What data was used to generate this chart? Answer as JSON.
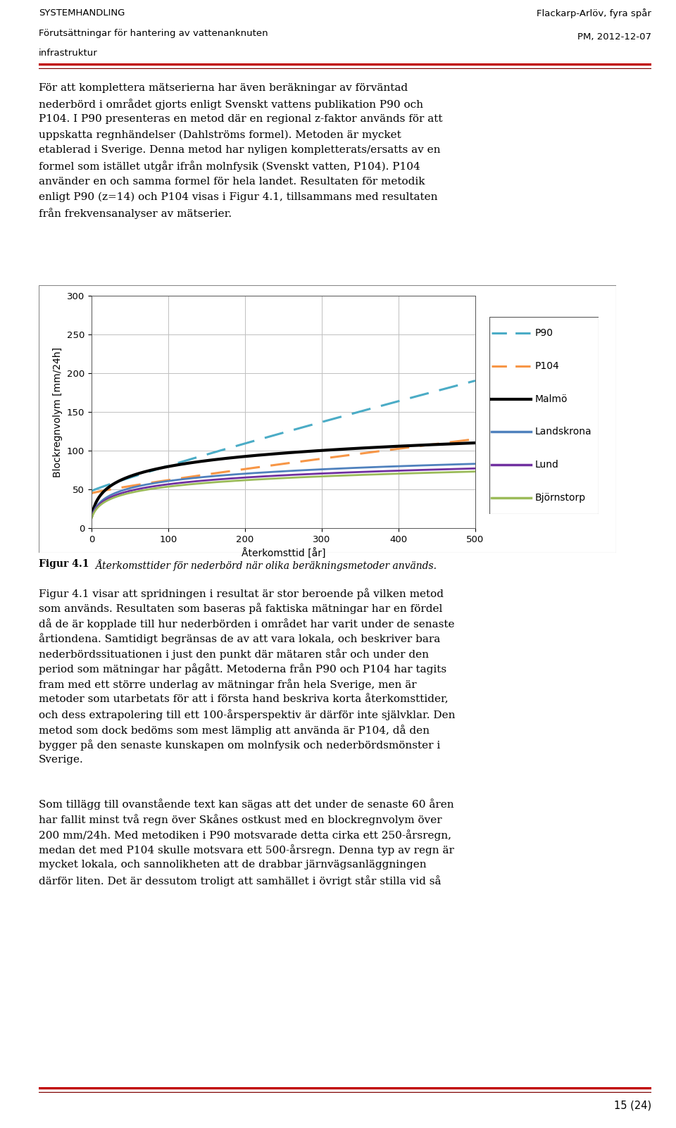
{
  "header_left_line1": "SYSTEMHANDLING",
  "header_left_line2": "Förutsättningar för hantering av vattenanknuten",
  "header_left_line3": "infrastruktur",
  "header_right_line1": "Flackarp-Arlöv, fyra spår",
  "header_right_line2": "PM, 2012-12-07",
  "header_line_color": "#c00000",
  "header_line2_color": "#7f0000",
  "xlabel": "Återkomsttid [år]",
  "ylabel": "Blockregnvolym [mm/24h]",
  "xlim": [
    0,
    500
  ],
  "ylim": [
    0,
    300
  ],
  "xticks": [
    0,
    100,
    200,
    300,
    400,
    500
  ],
  "yticks": [
    0,
    50,
    100,
    150,
    200,
    250,
    300
  ],
  "legend_labels": [
    "P90",
    "P104",
    "Malmö",
    "Landskrona",
    "Lund",
    "Björnstorp"
  ],
  "legend_colors": [
    "#4bacc6",
    "#f79646",
    "#000000",
    "#4f81bd",
    "#7030a0",
    "#9bbb59"
  ],
  "figcaption_bold": "Figur 4.1",
  "figcaption_italic": "Återkomsttider för nederbörd när olika beräkningsmetoder används.",
  "page_number": "15 (24)",
  "background_color": "#ffffff",
  "chart_background": "#ffffff",
  "grid_color": "#c0c0c0",
  "border_color": "#000000",
  "body1_lines": [
    "För att komplettera mätserierna har även beräkningar av förväntad",
    "nederbörd i området gjorts enligt Svenskt vattens publikation P90 och",
    "P104. I P90 presenteras en metod där en regional z-faktor används för att",
    "uppskatta regnhändelser (Dahlströms formel). Metoden är mycket",
    "etablerad i Sverige. Denna metod har nyligen kompletterats/ersatts av en",
    "formel som istället utgår ifrån molnfysik (Svenskt vatten, P104). P104",
    "använder en och samma formel för hela landet. Resultaten för metodik",
    "enligt P90 (z=14) och P104 visas i Figur 4.1, tillsammans med resultaten",
    "från frekvensanalyser av mätserier."
  ],
  "body2_lines": [
    "Figur 4.1 visar att spridningen i resultat är stor beroende på vilken metod",
    "som används. Resultaten som baseras på faktiska mätningar har en fördel",
    "då de är kopplade till hur nederbörden i området har varit under de senaste",
    "årtiondena. Samtidigt begränsas de av att vara lokala, och beskriver bara",
    "nederbördssituationen i just den punkt där mätaren står och under den",
    "period som mätningar har pågått. Metoderna från P90 och P104 har tagits",
    "fram med ett större underlag av mätningar från hela Sverige, men är",
    "metoder som utarbetats för att i första hand beskriva korta återkomsttider,",
    "och dess extrapolering till ett 100-årsperspektiv är därför inte självklar. Den",
    "metod som dock bedöms som mest lämplig att använda är P104, då den",
    "bygger på den senaste kunskapen om molnfysik och nederbördsmönster i",
    "Sverige."
  ],
  "body3_lines": [
    "Som tillägg till ovanstående text kan sägas att det under de senaste 60 åren",
    "har fallit minst två regn över Skånes ostkust med en blockregnvolym över",
    "200 mm/24h. Med metodiken i P90 motsvarade detta cirka ett 250-årsregn,",
    "medan det med P104 skulle motsvara ett 500-årsregn. Denna typ av regn är",
    "mycket lokala, och sannolikheten att de drabbar järnvägsanläggningen",
    "därför liten. Det är dessutom troligt att samhället i övrigt står stilla vid så"
  ]
}
